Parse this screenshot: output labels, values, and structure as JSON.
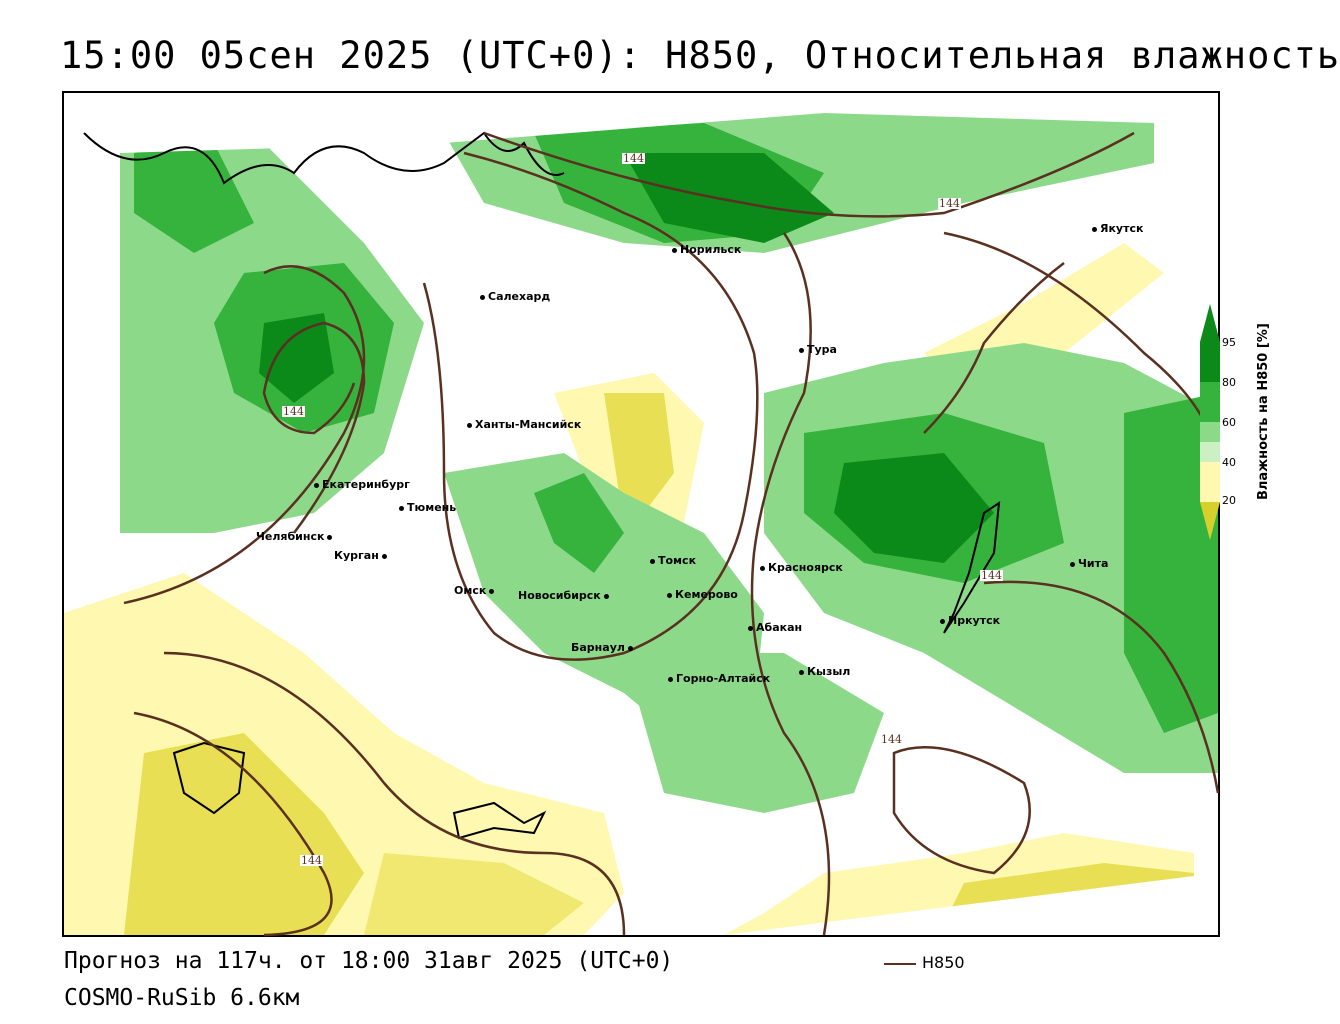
{
  "title": "15:00 05сен 2025 (UTC+0): H850, Относительная влажность",
  "footer": {
    "forecast": "Прогноз на 117ч. от 18:00 31авг 2025 (UTC+0)",
    "model": "COSMO-RuSib 6.6км",
    "contour_legend_label": "H850"
  },
  "legend": {
    "title": "Влажность на H850 [%]",
    "ticks": [
      "95",
      "80",
      "60",
      "40",
      "20"
    ],
    "colors": {
      "c95": "#0b8a1a",
      "c80": "#35b33c",
      "c60": "#8dd98a",
      "c50": "#ccefc4",
      "c40": "#ffffff",
      "c30": "#fff8b0",
      "c20": "#f0e870",
      "c10": "#d6cf2c"
    },
    "contour_color": "#5a3020"
  },
  "contour_value": "144",
  "cities": [
    {
      "name": "Якутск"
    },
    {
      "name": "Норильск"
    },
    {
      "name": "Салехард"
    },
    {
      "name": "Тура"
    },
    {
      "name": "Ханты-Мансийск"
    },
    {
      "name": "Екатеринбург"
    },
    {
      "name": "Тюмень"
    },
    {
      "name": "Челябинск"
    },
    {
      "name": "Курган"
    },
    {
      "name": "Омск"
    },
    {
      "name": "Новосибирск"
    },
    {
      "name": "Томск"
    },
    {
      "name": "Кемерово"
    },
    {
      "name": "Красноярск"
    },
    {
      "name": "Барнаул"
    },
    {
      "name": "Абакан"
    },
    {
      "name": "Горно-Алтайск"
    },
    {
      "name": "Кызыл"
    },
    {
      "name": "Иркутск"
    },
    {
      "name": "Чита"
    }
  ]
}
